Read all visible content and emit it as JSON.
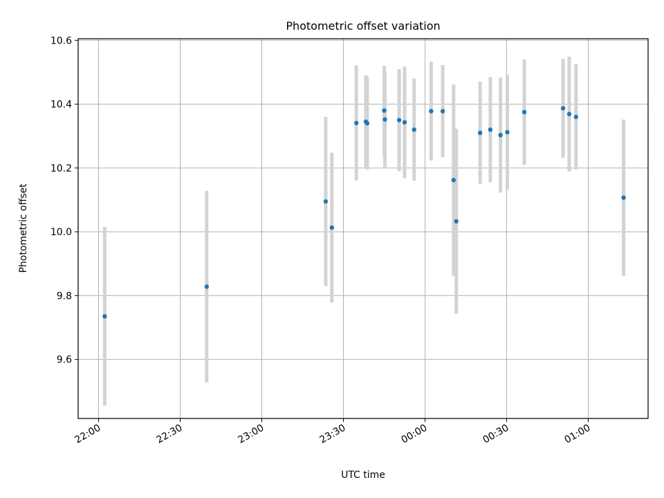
{
  "chart_data": {
    "type": "scatter",
    "title": "Photometric offset variation",
    "xlabel": "UTC time",
    "ylabel": "Photometric offset",
    "x_unit": "time of day (UTC), crossing midnight",
    "xlim": [
      "21:52:30",
      "01:22:00"
    ],
    "ylim": [
      9.415,
      10.605
    ],
    "x_ticks": [
      "22:00",
      "22:30",
      "23:00",
      "23:30",
      "00:00",
      "00:30",
      "01:00"
    ],
    "y_ticks": [
      "9.6",
      "9.8",
      "10.0",
      "10.2",
      "10.4",
      "10.6"
    ],
    "grid": true,
    "legend": "none",
    "series": [
      {
        "points": [
          {
            "x": "22:02:15",
            "y": 9.735,
            "err": 0.28
          },
          {
            "x": "22:39:45",
            "y": 9.828,
            "err": 0.3
          },
          {
            "x": "23:23:30",
            "y": 10.095,
            "err": 0.265
          },
          {
            "x": "23:25:45",
            "y": 10.013,
            "err": 0.235
          },
          {
            "x": "23:34:45",
            "y": 10.341,
            "err": 0.18
          },
          {
            "x": "23:38:15",
            "y": 10.345,
            "err": 0.145
          },
          {
            "x": "23:38:45",
            "y": 10.34,
            "err": 0.145
          },
          {
            "x": "23:45:00",
            "y": 10.38,
            "err": 0.14
          },
          {
            "x": "23:45:15",
            "y": 10.352,
            "err": 0.15
          },
          {
            "x": "23:50:30",
            "y": 10.35,
            "err": 0.16
          },
          {
            "x": "23:52:30",
            "y": 10.343,
            "err": 0.175
          },
          {
            "x": "23:56:00",
            "y": 10.32,
            "err": 0.16
          },
          {
            "x": "00:02:15",
            "y": 10.378,
            "err": 0.155
          },
          {
            "x": "00:06:30",
            "y": 10.378,
            "err": 0.145
          },
          {
            "x": "00:10:30",
            "y": 10.162,
            "err": 0.3
          },
          {
            "x": "00:11:30",
            "y": 10.033,
            "err": 0.29
          },
          {
            "x": "00:20:15",
            "y": 10.31,
            "err": 0.16
          },
          {
            "x": "00:24:00",
            "y": 10.32,
            "err": 0.165
          },
          {
            "x": "00:27:45",
            "y": 10.303,
            "err": 0.18
          },
          {
            "x": "00:30:15",
            "y": 10.312,
            "err": 0.18
          },
          {
            "x": "00:36:30",
            "y": 10.375,
            "err": 0.165
          },
          {
            "x": "00:50:45",
            "y": 10.387,
            "err": 0.155
          },
          {
            "x": "00:53:00",
            "y": 10.369,
            "err": 0.18
          },
          {
            "x": "00:55:30",
            "y": 10.36,
            "err": 0.165
          },
          {
            "x": "01:13:00",
            "y": 10.107,
            "err": 0.245
          }
        ],
        "marker_color": "#1f77b4",
        "errorbar_color": "#d3d3d3"
      }
    ]
  }
}
